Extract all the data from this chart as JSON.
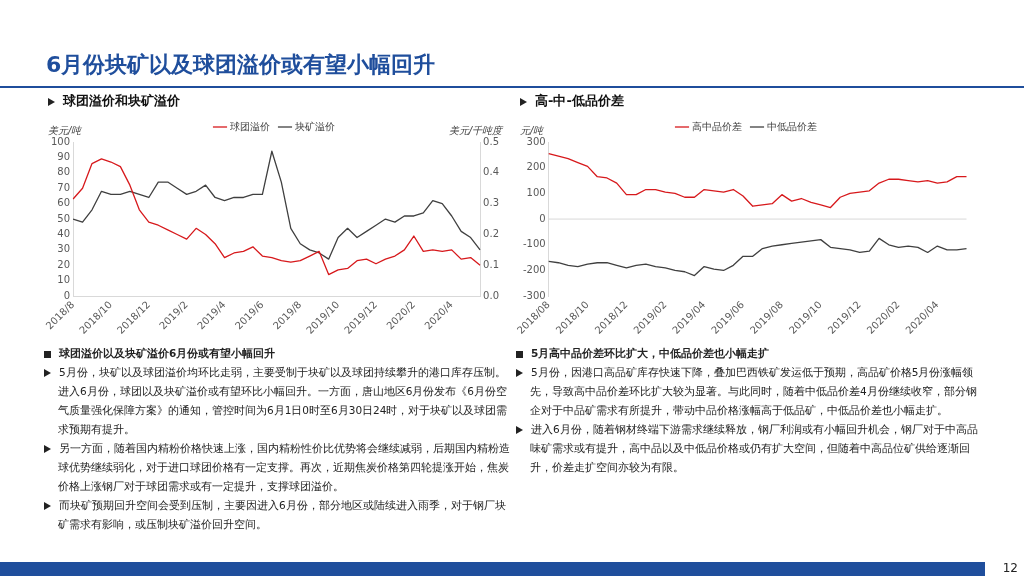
{
  "chart_data": [
    {
      "type": "other",
      "title": "6月份块矿以及球团溢价或有望小幅回升",
      "annotations": [
        "12"
      ]
    },
    {
      "type": "line",
      "title": "球团溢价和块矿溢价",
      "ylabel": "美元/吨",
      "y2label": "美元/千吨度",
      "legend": "top",
      "categories": [
        "2018/8",
        null,
        null,
        null,
        "2018/10",
        null,
        null,
        null,
        "2018/12",
        null,
        null,
        null,
        "2019/2",
        null,
        null,
        null,
        "2019/4",
        null,
        null,
        null,
        "2019/6",
        null,
        null,
        null,
        "2019/8",
        null,
        null,
        null,
        "2019/10",
        null,
        null,
        null,
        "2019/12",
        null,
        null,
        null,
        "2020/2",
        null,
        null,
        null,
        "2020/4",
        null,
        null,
        null
      ],
      "ylim": [
        0,
        100
      ],
      "yticks": [
        0,
        10,
        20,
        30,
        40,
        50,
        60,
        70,
        80,
        90,
        100
      ],
      "y2lim": [
        0,
        0.5
      ],
      "y2ticks": [
        {
          "value": 0,
          "label": "0.0"
        },
        0.1,
        0.2,
        0.3,
        0.4,
        0.5
      ],
      "series": [
        {
          "name": "球团溢价",
          "color": "#d7191c",
          "values": [
            63,
            70,
            86,
            89,
            87,
            84,
            72,
            56,
            48,
            46,
            43,
            40,
            37,
            44,
            40,
            34,
            25,
            28,
            29,
            32,
            26,
            25,
            23,
            22,
            23,
            26,
            29,
            14,
            17,
            18,
            23,
            24,
            21,
            24,
            26,
            30,
            39,
            29,
            30,
            29,
            30,
            24,
            25,
            20
          ]
        },
        {
          "name": "块矿溢价",
          "color": "#404040",
          "axis": "y2",
          "values": [
            0.25,
            0.24,
            0.28,
            0.34,
            0.33,
            0.33,
            0.34,
            0.33,
            0.32,
            0.37,
            0.37,
            0.35,
            0.33,
            0.34,
            0.36,
            0.32,
            0.31,
            0.32,
            0.32,
            0.33,
            0.33,
            0.47,
            0.37,
            0.22,
            0.17,
            0.15,
            0.14,
            0.12,
            0.19,
            0.22,
            0.19,
            0.21,
            0.23,
            0.25,
            0.24,
            0.26,
            0.26,
            0.27,
            0.31,
            0.3,
            0.26,
            0.21,
            0.19,
            0.15
          ]
        }
      ],
      "annotations": [
        "球团溢价以及块矿溢价6月份或有望小幅回升",
        "5月份，块矿以及球团溢价均环比走弱，主要受制于块矿以及球团持续攀升的港口库存压制。进入6月份，球团以及块矿溢价或有望环比小幅回升。一方面，唐山地区6月份发布《6月份空气质量强化保障方案》的通知，管控时间为6月1日0时至6月30日24时，对于块矿以及球团需求预期有提升。",
        "另一方面，随着国内精粉价格快速上涨，国内精粉性价比优势将会继续减弱，后期国内精粉造球优势继续弱化，对于进口球团价格有一定支撑。再次，近期焦炭价格第四轮提涨开始，焦炭价格上涨钢厂对于球团需求或有一定提升，支撑球团溢价。",
        "而块矿预期回升空间会受到压制，主要因进入6月份，部分地区或陆续进入雨季，对于钢厂块矿需求有影响，或压制块矿溢价回升空间。"
      ]
    },
    {
      "type": "line",
      "title": "高-中-低品价差",
      "ylabel": "元/吨",
      "legend": "top",
      "categories": [
        "2018/08",
        null,
        null,
        null,
        "2018/10",
        null,
        null,
        null,
        "2018/12",
        null,
        null,
        null,
        "2019/02",
        null,
        null,
        null,
        "2019/04",
        null,
        null,
        null,
        "2019/06",
        null,
        null,
        null,
        "2019/08",
        null,
        null,
        null,
        "2019/10",
        null,
        null,
        null,
        "2019/12",
        null,
        null,
        null,
        "2020/02",
        null,
        null,
        null,
        "2020/04",
        null,
        null,
        null
      ],
      "ylim": [
        -300,
        300
      ],
      "yticks": [
        -300,
        -200,
        -100,
        0,
        100,
        200,
        300
      ],
      "ref_lines": [
        {
          "axis": "y",
          "value": 0,
          "color": "#d9d9d9"
        }
      ],
      "series": [
        {
          "name": "高中品价差",
          "color": "#d7191c",
          "values": [
            255,
            245,
            235,
            220,
            205,
            165,
            160,
            140,
            95,
            95,
            115,
            115,
            105,
            100,
            85,
            85,
            115,
            110,
            105,
            115,
            90,
            50,
            55,
            60,
            95,
            70,
            80,
            65,
            55,
            45,
            85,
            100,
            105,
            110,
            140,
            155,
            155,
            150,
            145,
            150,
            140,
            145,
            165,
            165
          ]
        },
        {
          "name": "中低品价差",
          "color": "#404040",
          "values": [
            -165,
            -170,
            -180,
            -185,
            -175,
            -170,
            -170,
            -180,
            -190,
            -180,
            -175,
            -185,
            -190,
            -200,
            -205,
            -220,
            -185,
            -195,
            -200,
            -180,
            -145,
            -145,
            -115,
            -105,
            -100,
            -95,
            -90,
            -85,
            -80,
            -110,
            -115,
            -120,
            -130,
            -125,
            -75,
            -100,
            -110,
            -105,
            -110,
            -130,
            -105,
            -120,
            -120,
            -115
          ]
        }
      ],
      "annotations": [
        "5月高中品价差环比扩大，中低品价差也小幅走扩",
        "5月份，因港口高品矿库存快速下降，叠加巴西铁矿发运低于预期，高品矿价格5月份涨幅领先，导致高中品价差环比扩大较为显著。与此同时，随着中低品价差4月份继续收窄，部分钢企对于中品矿需求有所提升，带动中品价格涨幅高于低品矿，中低品价差也小幅走扩。",
        "进入6月份，随着钢材终端下游需求继续释放，钢厂利润或有小幅回升机会，钢厂对于中高品味矿需求或有提升，高中品以及中低品价格或仍有扩大空间，但随着中高品位矿供给逐渐回升，价差走扩空间亦较为有限。"
      ]
    }
  ]
}
